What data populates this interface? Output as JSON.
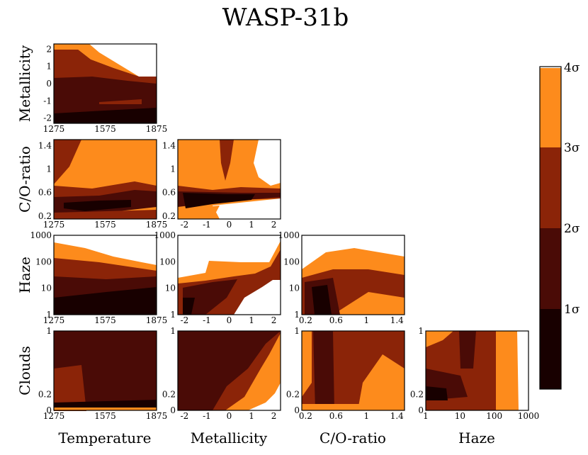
{
  "chart_data": {
    "type": "heatmap",
    "subtype": "corner-contour",
    "title": "WASP-31b",
    "parameters": [
      "Temperature",
      "Metallicity",
      "C/O-ratio",
      "Haze",
      "Clouds"
    ],
    "x_axis_labels": [
      "Temperature",
      "Metallicity",
      "C/O-ratio",
      "Haze"
    ],
    "y_axis_labels": [
      "Metallicity",
      "C/O-ratio",
      "Haze",
      "Clouds"
    ],
    "ticks": {
      "Temperature": {
        "values": [
          1275,
          1575,
          1875
        ],
        "labels": [
          "1275",
          "1575",
          "1875"
        ],
        "range": [
          1275,
          1875
        ]
      },
      "Metallicity": {
        "values": [
          -2,
          -1,
          0,
          1,
          2
        ],
        "labels": [
          "-2",
          "-1",
          "0",
          "1",
          "2"
        ],
        "range": [
          -2.3,
          2.3
        ]
      },
      "C/O-ratio": {
        "values": [
          0.2,
          0.6,
          1,
          1.4
        ],
        "labels": [
          "0.2",
          "0.6",
          "1",
          "1.4"
        ],
        "range": [
          0.15,
          1.5
        ]
      },
      "Haze": {
        "values": [
          1,
          10,
          100,
          1000
        ],
        "labels": [
          "1",
          "10",
          "100",
          "1000"
        ],
        "scale": "log",
        "range": [
          1,
          1000
        ]
      },
      "Clouds": {
        "values": [
          0,
          0.2,
          1
        ],
        "labels": [
          "0",
          "0.2",
          "1"
        ],
        "range": [
          0,
          1
        ]
      }
    },
    "colorbar": {
      "labels": [
        "1σ",
        "2σ",
        "3σ",
        "4σ"
      ],
      "levels": [
        {
          "range": "< 1σ",
          "color": "#180000"
        },
        {
          "range": "1σ – 2σ",
          "color": "#4a0b06"
        },
        {
          "range": "2σ – 3σ",
          "color": "#8b2408"
        },
        {
          "range": "3σ – 4σ",
          "color": "#fd8b1c"
        },
        {
          "range": "> 4σ",
          "color": "#ffffff"
        }
      ]
    },
    "panels": [
      {
        "x": "Temperature",
        "y": "Metallicity",
        "description": "confidence region concentrated at metallicity -2 to 0.5 across all temperatures; >4σ excluded at high metallicity and high temperature"
      },
      {
        "x": "Temperature",
        "y": "C/O-ratio",
        "description": "best fit at C/O 0.3-0.5, low temperature; upper C/O mostly 3σ"
      },
      {
        "x": "Metallicity",
        "y": "C/O-ratio",
        "description": "best fit at low metallicity, C/O ~0.3-0.5; high metallicity with high C/O excluded"
      },
      {
        "x": "Temperature",
        "y": "Haze",
        "description": "low haze preferred; haze above ~500 excluded"
      },
      {
        "x": "Metallicity",
        "y": "Haze",
        "description": "high metallicity with low haze excluded"
      },
      {
        "x": "C/O-ratio",
        "y": "Haze",
        "description": "best fit at C/O ~0.4-0.5 with low haze"
      },
      {
        "x": "Temperature",
        "y": "Clouds",
        "description": "mostly within 1-2σ across all cloud values"
      },
      {
        "x": "Metallicity",
        "y": "Clouds",
        "description": "high metallicity with low clouds excluded"
      },
      {
        "x": "C/O-ratio",
        "y": "Clouds",
        "description": "best fit near C/O 0.4-0.6"
      },
      {
        "x": "Haze",
        "y": "Clouds",
        "description": "haze above ~500 excluded"
      }
    ]
  }
}
